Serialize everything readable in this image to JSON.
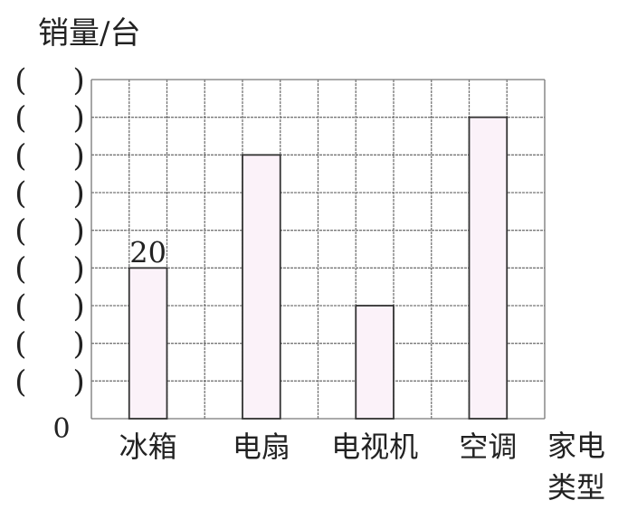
{
  "chart_data": {
    "type": "bar",
    "ylabel": "销量/台",
    "xlabel": [
      "家电",
      "类型"
    ],
    "categories": [
      "冰箱",
      "电扇",
      "电视机",
      "空调"
    ],
    "values": [
      20,
      35,
      15,
      40
    ],
    "data_labels": [
      "20",
      "",
      "",
      ""
    ],
    "y_tick_labels": [
      "( )",
      "( )",
      "( )",
      "( )",
      "( )",
      "( )",
      "( )",
      "( )",
      "( )"
    ],
    "y_origin_label": "0",
    "ylim": [
      0,
      45
    ],
    "y_step": 5,
    "grid": true,
    "bar_color": "#fbf2f9",
    "bar_edge_color": "#333333"
  }
}
